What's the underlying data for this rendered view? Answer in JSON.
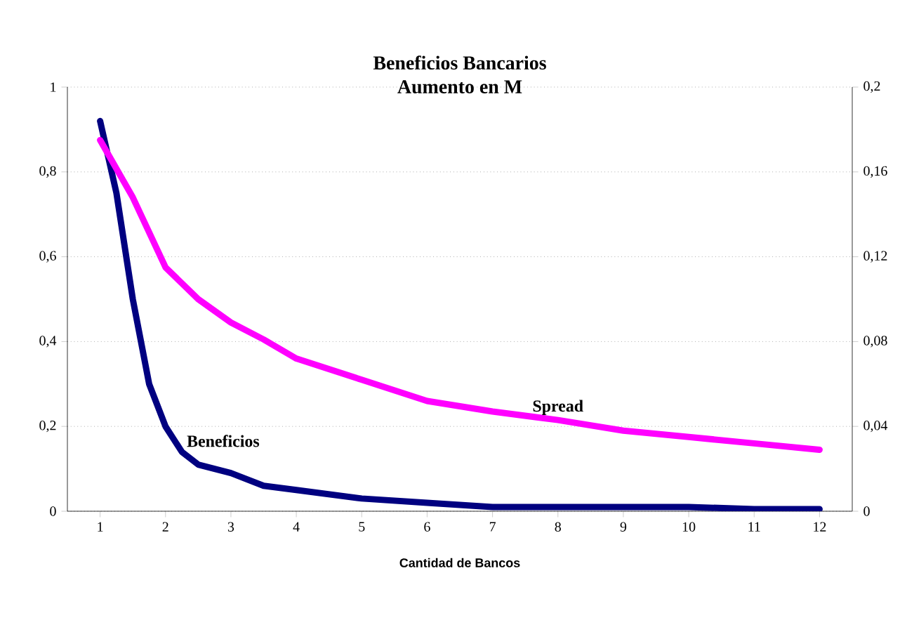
{
  "chart_data": {
    "type": "line",
    "title": "Beneficios Bancarios",
    "subtitle": "Aumento en M",
    "xlabel": "Cantidad de Bancos",
    "xlim": [
      0.5,
      12.5
    ],
    "xticks": [
      1,
      2,
      3,
      4,
      5,
      6,
      7,
      8,
      9,
      10,
      11,
      12
    ],
    "ylim": [
      0,
      1
    ],
    "yticks": [
      0,
      {
        "value": 0.2,
        "label": "0,2"
      },
      {
        "value": 0.4,
        "label": "0,4"
      },
      {
        "value": 0.6,
        "label": "0,6"
      },
      {
        "value": 0.8,
        "label": "0,8"
      },
      1
    ],
    "y2lim": [
      0,
      0.2
    ],
    "y2ticks": [
      0,
      {
        "value": 0.04,
        "label": "0,04"
      },
      {
        "value": 0.08,
        "label": "0,08"
      },
      {
        "value": 0.12,
        "label": "0,12"
      },
      {
        "value": 0.16,
        "label": "0,16"
      },
      {
        "value": 0.2,
        "label": "0,2"
      }
    ],
    "grid": "y",
    "marker": "none",
    "line_style": "solid",
    "series": [
      {
        "name": "Beneficios",
        "color": "#000080",
        "x": [
          1,
          1.25,
          1.5,
          1.75,
          2,
          2.25,
          2.5,
          3,
          3.5,
          4,
          5,
          6,
          7,
          8,
          9,
          10,
          11,
          12
        ],
        "values": [
          0.92,
          0.75,
          0.5,
          0.3,
          0.2,
          0.14,
          0.11,
          0.09,
          0.06,
          0.05,
          0.03,
          0.02,
          0.01,
          0.01,
          0.01,
          0.01,
          0.005,
          0.005
        ]
      },
      {
        "name": "Spread",
        "color": "#ff00ff",
        "axis": "y2",
        "x": [
          1,
          1.5,
          2,
          2.5,
          3,
          3.5,
          4,
          5,
          6,
          7,
          8,
          9,
          10,
          11,
          12
        ],
        "values": [
          0.175,
          0.148,
          0.115,
          0.1,
          0.089,
          0.081,
          0.072,
          0.062,
          0.052,
          0.047,
          0.043,
          0.038,
          0.035,
          0.032,
          0.029
        ]
      }
    ]
  }
}
